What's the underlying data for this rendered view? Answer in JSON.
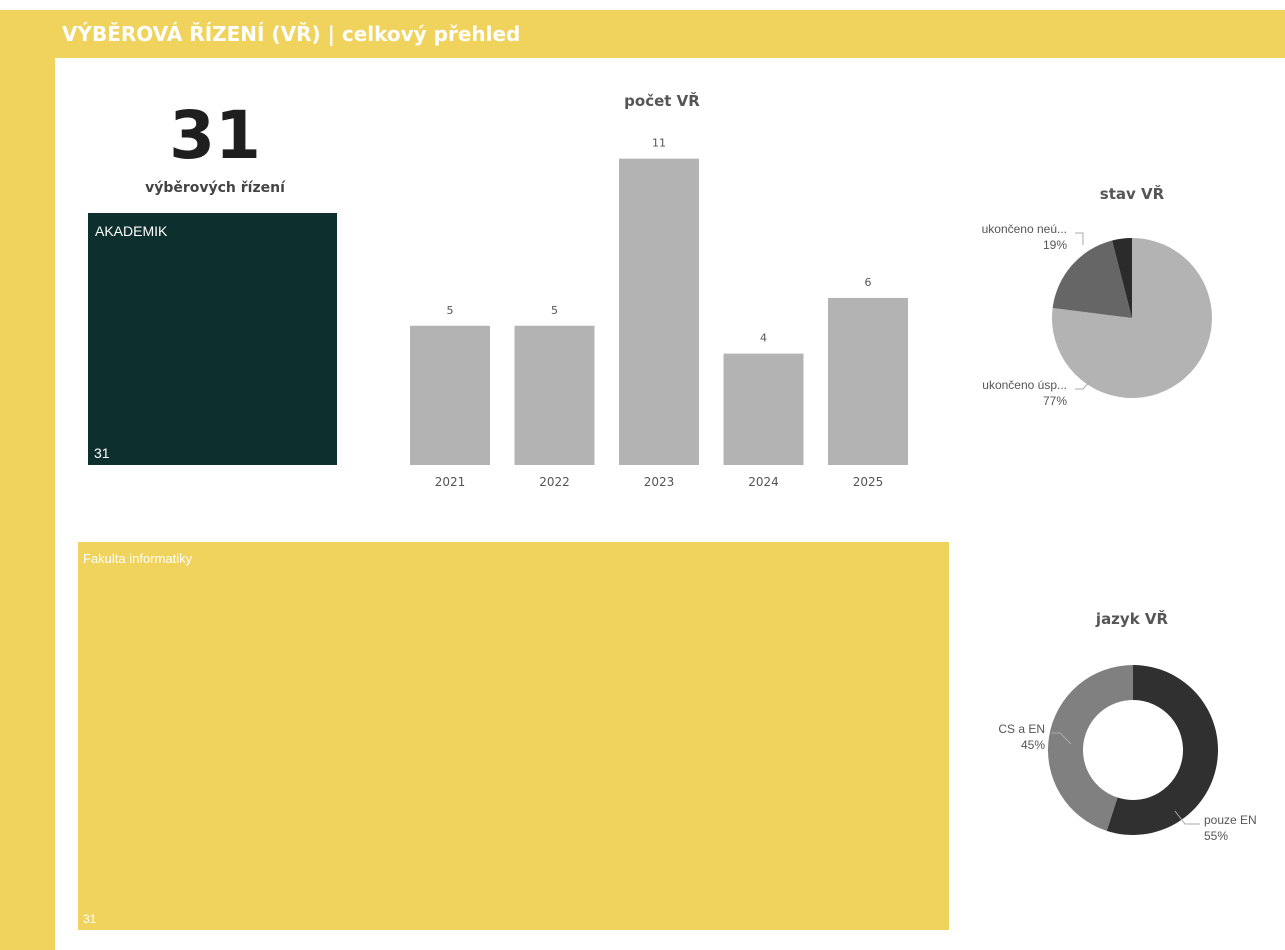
{
  "header": {
    "title": "VÝBĚROVÁ ŘÍZENÍ (VŘ) | celkový přehled"
  },
  "kpi": {
    "value": "31",
    "label": "výběrových řízení"
  },
  "treemaps": {
    "akademik": {
      "label": "AKADEMIK",
      "value": "31",
      "color": "#0d302e"
    },
    "faculty": {
      "label": "Fakulta informatiky",
      "value": "31",
      "color": "#f0d35c"
    }
  },
  "colors": {
    "accent": "#f0d35c",
    "bar": "#b3b3b3"
  },
  "chart_data": [
    {
      "type": "bar",
      "title": "počet VŘ",
      "categories": [
        "2021",
        "2022",
        "2023",
        "2024",
        "2025"
      ],
      "values": [
        5,
        5,
        11,
        4,
        6
      ],
      "data_labels": [
        "5",
        "5",
        "11",
        "4",
        "6"
      ]
    },
    {
      "type": "pie",
      "title": "stav VŘ",
      "slices": [
        {
          "label": "ukončeno úsp...",
          "percent_label": "77%",
          "value": 77,
          "color": "#b3b3b3"
        },
        {
          "label": "ukončeno neú...",
          "percent_label": "19%",
          "value": 19,
          "color": "#666666"
        },
        {
          "label": "",
          "percent_label": "",
          "value": 4,
          "color": "#2b2b2b"
        }
      ]
    },
    {
      "type": "pie",
      "title": "jazyk VŘ",
      "donut": true,
      "slices": [
        {
          "label": "pouze EN",
          "percent_label": "55%",
          "value": 55,
          "color": "#303030"
        },
        {
          "label": "CS a EN",
          "percent_label": "45%",
          "value": 45,
          "color": "#808080"
        }
      ]
    }
  ]
}
